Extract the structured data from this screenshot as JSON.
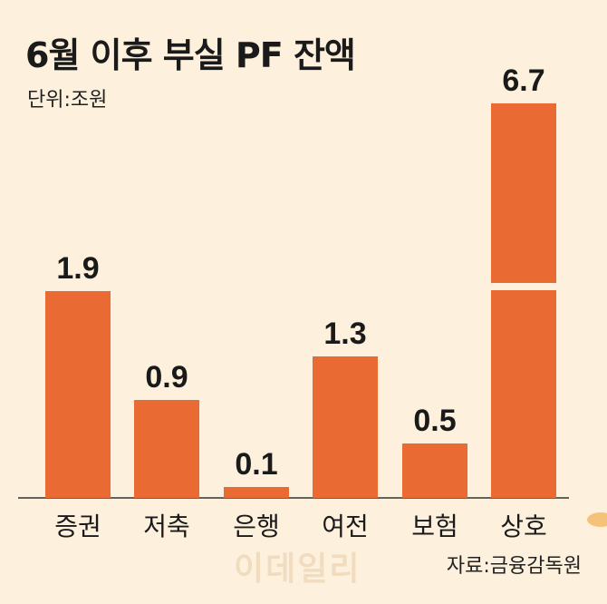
{
  "title": "6월 이후 부실 PF 잔액",
  "unit_label": "단위:조원",
  "source": "자료:금융감독원",
  "watermark": "이데일리",
  "colors": {
    "background": "#fdf1dd",
    "bar": "#ea6a33",
    "text": "#1a1a1a"
  },
  "chart_data": {
    "type": "bar",
    "title": "6월 이후 부실 PF 잔액",
    "ylabel": "단위:조원",
    "categories": [
      "증권",
      "저축",
      "은행",
      "여전",
      "보험",
      "상호"
    ],
    "values": [
      1.9,
      0.9,
      0.1,
      1.3,
      0.5,
      6.7
    ],
    "value_labels": [
      "1.9",
      "0.9",
      "0.1",
      "1.3",
      "0.5",
      "6.7"
    ],
    "axis_break": {
      "bar": "상호"
    },
    "grid": false,
    "legend": "none"
  }
}
